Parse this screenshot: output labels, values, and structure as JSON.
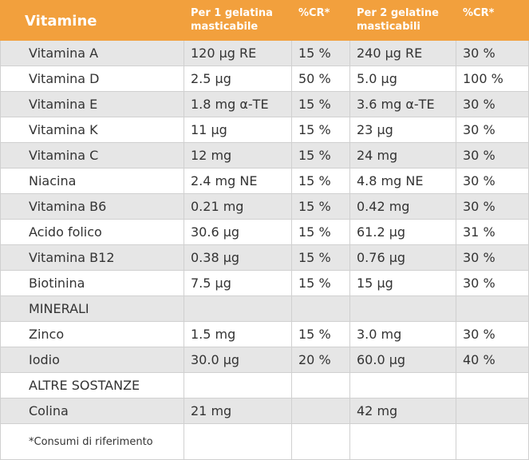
{
  "header": {
    "col1": "Vitamine",
    "col2": "Per 1 gelatina masticabile",
    "col3": "%CR*",
    "col4": "Per 2 gelatine masticabili",
    "col5": "%CR*"
  },
  "rows": [
    {
      "name": "Vitamina A",
      "v1": "120 µg RE",
      "p1": "15 %",
      "v2": "240 µg RE",
      "p2": "30 %"
    },
    {
      "name": "Vitamina D",
      "v1": "2.5 µg",
      "p1": "50 %",
      "v2": "5.0 µg",
      "p2": "100 %"
    },
    {
      "name": "Vitamina E",
      "v1": "1.8 mg α-TE",
      "p1": "15 %",
      "v2": "3.6 mg α-TE",
      "p2": "30 %"
    },
    {
      "name": "Vitamina K",
      "v1": "11 µg",
      "p1": "15 %",
      "v2": "23 µg",
      "p2": "30 %"
    },
    {
      "name": "Vitamina C",
      "v1": "12 mg",
      "p1": "15 %",
      "v2": "24 mg",
      "p2": "30 %"
    },
    {
      "name": "Niacina",
      "v1": "2.4 mg NE",
      "p1": "15 %",
      "v2": "4.8 mg NE",
      "p2": "30 %"
    },
    {
      "name": "Vitamina B6",
      "v1": "0.21 mg",
      "p1": "15 %",
      "v2": "0.42 mg",
      "p2": "30 %"
    },
    {
      "name": "Acido folico",
      "v1": "30.6 µg",
      "p1": "15 %",
      "v2": "61.2 µg",
      "p2": "31 %"
    },
    {
      "name": "Vitamina B12",
      "v1": "0.38 µg",
      "p1": "15 %",
      "v2": "0.76 µg",
      "p2": "30 %"
    },
    {
      "name": "Biotinina",
      "v1": "7.5 µg",
      "p1": "15 %",
      "v2": "15 µg",
      "p2": "30 %"
    },
    {
      "name": "MINERALI",
      "v1": "",
      "p1": "",
      "v2": "",
      "p2": ""
    },
    {
      "name": "Zinco",
      "v1": "1.5 mg",
      "p1": "15 %",
      "v2": "3.0 mg",
      "p2": "30 %"
    },
    {
      "name": "Iodio",
      "v1": "30.0 µg",
      "p1": "20 %",
      "v2": "60.0 µg",
      "p2": "40 %"
    },
    {
      "name": "ALTRE SOSTANZE",
      "v1": "",
      "p1": "",
      "v2": "",
      "p2": ""
    },
    {
      "name": "Colina",
      "v1": "21 mg",
      "p1": "",
      "v2": "42 mg",
      "p2": ""
    }
  ],
  "footnote": "*Consumi di riferimento",
  "colors": {
    "header_bg": "#f2a03d",
    "row_alt": "#e6e6e6"
  }
}
